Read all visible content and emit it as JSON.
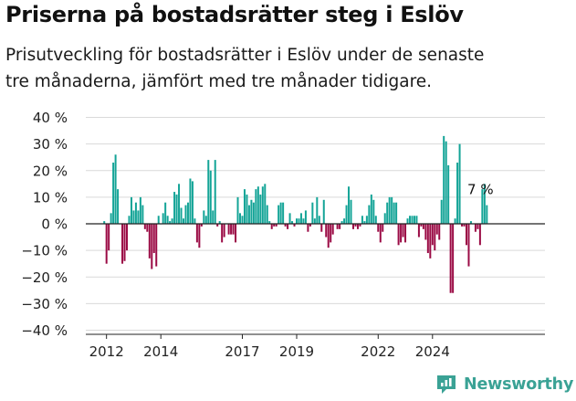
{
  "header": {
    "title": "Priserna på bostadsrätter steg i Eslöv",
    "subtitle_line1": "Prisutveckling för bostadsrätter i Eslöv under de senaste",
    "subtitle_line2": "tre månaderna, jämfört med tre månader tidigare."
  },
  "brand": {
    "name": "Newsworthy",
    "icon": "newsworthy-logo-icon"
  },
  "colors": {
    "positive": "#14a497",
    "negative": "#9b0b45",
    "grid": "#d9d9d9",
    "axis": "#222222"
  },
  "chart_data": {
    "type": "bar",
    "title": "Priserna på bostadsrätter steg i Eslöv",
    "xlabel": "",
    "ylabel": "",
    "ylim": [
      -40,
      40
    ],
    "y_ticks": [
      40,
      30,
      20,
      10,
      0,
      -10,
      -20,
      -30,
      -40
    ],
    "y_tick_labels": [
      "40 %",
      "30 %",
      "20 %",
      "10 %",
      "0 %",
      "−10 %",
      "−20 %",
      "−30 %",
      "−40 %"
    ],
    "x_tick_labels": [
      {
        "label": "2012",
        "year": 2012
      },
      {
        "label": "2014",
        "year": 2014
      },
      {
        "label": "2017",
        "year": 2017
      },
      {
        "label": "2019",
        "year": 2019
      },
      {
        "label": "2022",
        "year": 2022
      },
      {
        "label": "2024",
        "year": 2024
      }
    ],
    "start": {
      "year": 2011,
      "month": 12
    },
    "value_unit": "%",
    "annotation": {
      "label": "7 %",
      "value": 7,
      "target": "last"
    },
    "values": [
      1,
      -15,
      -10,
      4,
      23,
      26,
      13,
      0,
      -15,
      -14,
      -10,
      3,
      10,
      5,
      8,
      5,
      10,
      7,
      -2,
      -3,
      -13,
      -17,
      -11,
      -16,
      3,
      0,
      4,
      8,
      3,
      1,
      2,
      12,
      11,
      15,
      6,
      2,
      7,
      8,
      17,
      16,
      2,
      -7,
      -9,
      -1,
      5,
      3,
      24,
      20,
      5,
      24,
      -1,
      1,
      -7,
      -5,
      0,
      -4,
      -4,
      -4,
      -7,
      10,
      4,
      3,
      13,
      11,
      7,
      9,
      8,
      13,
      14,
      11,
      14,
      15,
      7,
      1,
      -2,
      -1,
      -1,
      7,
      8,
      8,
      -1,
      -2,
      4,
      1,
      -1,
      2,
      2,
      4,
      2,
      5,
      -3,
      -1,
      8,
      2,
      10,
      3,
      -3,
      9,
      -5,
      -9,
      -7,
      -4,
      0,
      -2,
      -2,
      1,
      2,
      7,
      14,
      9,
      -2,
      -1,
      -2,
      -1,
      3,
      1,
      3,
      7,
      11,
      9,
      3,
      -3,
      -7,
      -3,
      4,
      8,
      10,
      10,
      8,
      8,
      -8,
      -7,
      -5,
      -7,
      2,
      3,
      3,
      3,
      3,
      -5,
      -1,
      -2,
      -6,
      -11,
      -13,
      -8,
      -10,
      -4,
      -6,
      9,
      33,
      31,
      22,
      -26,
      -26,
      2,
      23,
      30,
      -1,
      -1,
      -8,
      -16,
      1,
      0,
      -3,
      -2,
      -8,
      13,
      15,
      7
    ]
  }
}
